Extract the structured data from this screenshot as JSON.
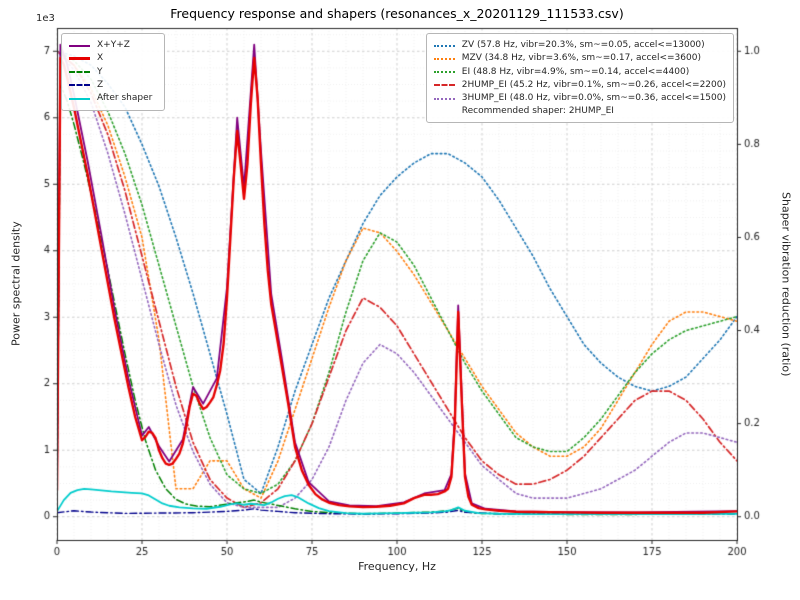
{
  "chart_data": {
    "type": "line",
    "title": "Frequency response and shapers (resonances_x_20201129_111533.csv)",
    "offset_text": "1e3",
    "xlabel": "Frequency, Hz",
    "ylabel_left": "Power spectral density",
    "ylabel_right": "Shaper vibration reduction (ratio)",
    "xlim": [
      0,
      200
    ],
    "ylim_left": [
      -350,
      7350
    ],
    "ylim_right": [
      -0.05,
      1.05
    ],
    "grid": "both",
    "xticks": {
      "values": [
        0,
        25,
        50,
        75,
        100,
        125,
        150,
        175,
        200
      ],
      "labels": [
        "0",
        "25",
        "50",
        "75",
        "100",
        "125",
        "150",
        "175",
        "200"
      ]
    },
    "yticks_left": {
      "values": [
        0,
        1000,
        2000,
        3000,
        4000,
        5000,
        6000,
        7000
      ],
      "labels": [
        "0",
        "1",
        "2",
        "3",
        "4",
        "5",
        "6",
        "7"
      ]
    },
    "yticks_right": {
      "values": [
        0,
        0.2,
        0.4,
        0.6,
        0.8,
        1.0
      ],
      "labels": [
        "0.0",
        "0.2",
        "0.4",
        "0.6",
        "0.8",
        "1.0"
      ]
    },
    "x_minor_step": 5,
    "y_minor_step_left": 250,
    "shaper_x": [
      0,
      5,
      10,
      15,
      20,
      25,
      30,
      35,
      40,
      45,
      50,
      55,
      60,
      65,
      70,
      75,
      80,
      85,
      90,
      95,
      100,
      105,
      110,
      115,
      120,
      125,
      130,
      135,
      140,
      145,
      150,
      155,
      160,
      165,
      170,
      175,
      180,
      185,
      190,
      195,
      200
    ],
    "series": [
      {
        "name": "ZV",
        "axis": "right",
        "color": "#1f77b4",
        "dash": "dotted",
        "width": 1.6,
        "x_ref": "shaper_x",
        "y": [
          1.0,
          0.99,
          0.97,
          0.93,
          0.88,
          0.8,
          0.71,
          0.6,
          0.48,
          0.35,
          0.22,
          0.08,
          0.05,
          0.15,
          0.27,
          0.37,
          0.47,
          0.55,
          0.63,
          0.69,
          0.73,
          0.76,
          0.78,
          0.78,
          0.76,
          0.73,
          0.68,
          0.62,
          0.56,
          0.49,
          0.43,
          0.37,
          0.33,
          0.3,
          0.28,
          0.27,
          0.28,
          0.3,
          0.34,
          0.38,
          0.43
        ]
      },
      {
        "name": "MZV",
        "axis": "right",
        "color": "#ff7f0e",
        "dash": "dotted",
        "width": 1.6,
        "x_ref": "shaper_x",
        "y": [
          1.0,
          0.97,
          0.92,
          0.84,
          0.73,
          0.6,
          0.38,
          0.06,
          0.06,
          0.12,
          0.12,
          0.06,
          0.04,
          0.12,
          0.23,
          0.34,
          0.45,
          0.55,
          0.62,
          0.61,
          0.57,
          0.52,
          0.46,
          0.4,
          0.34,
          0.28,
          0.23,
          0.18,
          0.15,
          0.13,
          0.13,
          0.15,
          0.19,
          0.25,
          0.31,
          0.37,
          0.42,
          0.44,
          0.44,
          0.43,
          0.42
        ]
      },
      {
        "name": "EI",
        "axis": "right",
        "color": "#2ca02c",
        "dash": "dotted",
        "width": 1.6,
        "x_ref": "shaper_x",
        "y": [
          1.0,
          0.98,
          0.94,
          0.87,
          0.78,
          0.67,
          0.54,
          0.41,
          0.28,
          0.17,
          0.09,
          0.06,
          0.05,
          0.07,
          0.12,
          0.2,
          0.31,
          0.44,
          0.55,
          0.61,
          0.59,
          0.54,
          0.47,
          0.4,
          0.33,
          0.27,
          0.22,
          0.17,
          0.15,
          0.14,
          0.14,
          0.17,
          0.21,
          0.26,
          0.31,
          0.35,
          0.38,
          0.4,
          0.41,
          0.42,
          0.43
        ]
      },
      {
        "name": "2HUMP_EI",
        "axis": "right",
        "color": "#d62728",
        "dash": "dashdot",
        "width": 1.7,
        "x_ref": "shaper_x",
        "y": [
          1.0,
          0.97,
          0.91,
          0.82,
          0.7,
          0.56,
          0.42,
          0.28,
          0.16,
          0.08,
          0.04,
          0.02,
          0.03,
          0.06,
          0.12,
          0.2,
          0.3,
          0.4,
          0.47,
          0.45,
          0.41,
          0.35,
          0.29,
          0.23,
          0.17,
          0.12,
          0.09,
          0.07,
          0.07,
          0.08,
          0.1,
          0.13,
          0.17,
          0.21,
          0.25,
          0.27,
          0.27,
          0.25,
          0.21,
          0.16,
          0.12
        ]
      },
      {
        "name": "3HUMP_EI",
        "axis": "right",
        "color": "#9467bd",
        "dash": "dotted",
        "width": 1.6,
        "x_ref": "shaper_x",
        "y": [
          1.0,
          0.96,
          0.89,
          0.78,
          0.65,
          0.51,
          0.37,
          0.24,
          0.14,
          0.07,
          0.03,
          0.02,
          0.02,
          0.02,
          0.04,
          0.08,
          0.15,
          0.25,
          0.33,
          0.37,
          0.35,
          0.31,
          0.26,
          0.21,
          0.16,
          0.11,
          0.08,
          0.05,
          0.04,
          0.04,
          0.04,
          0.05,
          0.06,
          0.08,
          0.1,
          0.13,
          0.16,
          0.18,
          0.18,
          0.17,
          0.16
        ]
      },
      {
        "name": "Y",
        "axis": "left",
        "color": "#008000",
        "dash": "dashdot",
        "width": 1.5,
        "x": [
          0,
          1,
          3,
          5,
          8,
          11,
          14,
          17,
          20,
          23,
          26,
          29,
          32,
          35,
          38,
          41,
          45,
          50,
          53,
          56,
          58,
          60,
          63,
          66,
          70,
          75,
          80,
          90,
          100,
          110,
          115,
          118,
          120,
          125,
          135,
          150,
          170,
          200
        ],
        "y": [
          300,
          6500,
          6250,
          5900,
          5300,
          4650,
          3950,
          3200,
          2450,
          1750,
          1150,
          700,
          420,
          260,
          190,
          160,
          150,
          190,
          210,
          230,
          250,
          220,
          190,
          160,
          120,
          80,
          60,
          45,
          55,
          70,
          90,
          130,
          70,
          50,
          40,
          35,
          35,
          45
        ]
      },
      {
        "name": "Z",
        "axis": "left",
        "color": "#00008b",
        "dash": "dashdot",
        "width": 1.4,
        "x": [
          0,
          5,
          10,
          20,
          30,
          40,
          50,
          55,
          58,
          60,
          65,
          70,
          80,
          90,
          100,
          110,
          115,
          118,
          120,
          130,
          150,
          170,
          200
        ],
        "y": [
          60,
          90,
          70,
          50,
          55,
          60,
          80,
          100,
          120,
          100,
          80,
          60,
          45,
          40,
          45,
          55,
          70,
          95,
          65,
          45,
          40,
          40,
          45
        ]
      },
      {
        "name": "After shaper",
        "axis": "left",
        "color": "#00cccc",
        "dash": "solid",
        "width": 1.8,
        "x": [
          0,
          2,
          4,
          6,
          8,
          10,
          13,
          16,
          19,
          22,
          25,
          27,
          29,
          31,
          33,
          36,
          40,
          44,
          48,
          51,
          53,
          55,
          57,
          59,
          61,
          63,
          65,
          67,
          69,
          71,
          74,
          77,
          80,
          85,
          90,
          95,
          100,
          105,
          110,
          114,
          116,
          118,
          120,
          124,
          130,
          140,
          155,
          170,
          185,
          200
        ],
        "y": [
          80,
          250,
          360,
          400,
          420,
          410,
          395,
          380,
          370,
          360,
          350,
          320,
          260,
          200,
          165,
          140,
          125,
          120,
          150,
          185,
          200,
          180,
          195,
          185,
          175,
          215,
          270,
          310,
          325,
          290,
          200,
          130,
          85,
          55,
          45,
          50,
          55,
          60,
          65,
          80,
          100,
          140,
          90,
          55,
          45,
          40,
          40,
          40,
          40,
          45
        ]
      },
      {
        "name": "X+Y+Z",
        "axis": "left",
        "color": "#800080",
        "dash": "solid",
        "width": 1.8,
        "x": [
          0,
          1,
          3,
          5,
          9,
          13,
          17,
          21,
          25,
          27,
          30,
          33,
          37,
          40,
          43,
          47,
          50,
          53,
          55,
          58,
          60,
          63,
          66,
          70,
          74,
          80,
          86,
          94,
          102,
          108,
          114,
          116,
          117,
          118,
          119,
          120,
          122,
          126,
          135,
          150,
          170,
          200
        ],
        "y": [
          500,
          7100,
          6800,
          6350,
          5350,
          4250,
          3100,
          2080,
          1220,
          1350,
          1060,
          830,
          1160,
          1950,
          1700,
          2080,
          3450,
          6000,
          4950,
          7100,
          5500,
          3350,
          2420,
          1120,
          520,
          230,
          170,
          160,
          215,
          350,
          400,
          640,
          1500,
          3180,
          1900,
          650,
          200,
          120,
          80,
          70,
          65,
          85
        ]
      },
      {
        "name": "X",
        "axis": "left",
        "color": "#e60000",
        "dash": "solid",
        "width": 2.4,
        "x": [
          0,
          1,
          2,
          3,
          5,
          7,
          9,
          11,
          13,
          15,
          17,
          19,
          21,
          23,
          25,
          26,
          27,
          28,
          29,
          30,
          31,
          32,
          33,
          34,
          35,
          36,
          37,
          38,
          39,
          40,
          41,
          42,
          43,
          44,
          45,
          46,
          47,
          48,
          49,
          50,
          51,
          52,
          53,
          54,
          55,
          56,
          57,
          58,
          59,
          60,
          61,
          62,
          63,
          64,
          65,
          66,
          67,
          68,
          70,
          72,
          74,
          76,
          78,
          80,
          83,
          86,
          90,
          94,
          98,
          102,
          105,
          108,
          110,
          112,
          114,
          115,
          116,
          117,
          118,
          119,
          120,
          121,
          122,
          124,
          126,
          130,
          135,
          140,
          150,
          160,
          170,
          180,
          190,
          200
        ],
        "y": [
          400,
          6900,
          6800,
          6600,
          6150,
          5650,
          5150,
          4600,
          4050,
          3500,
          2950,
          2450,
          1950,
          1500,
          1150,
          1200,
          1280,
          1260,
          1180,
          1000,
          880,
          800,
          780,
          800,
          870,
          950,
          1100,
          1350,
          1650,
          1850,
          1820,
          1700,
          1620,
          1650,
          1720,
          1800,
          1980,
          2200,
          2600,
          3300,
          4200,
          5100,
          5800,
          5300,
          4780,
          5300,
          6200,
          6900,
          6300,
          5300,
          4400,
          3700,
          3200,
          2900,
          2600,
          2300,
          2000,
          1700,
          1050,
          700,
          480,
          340,
          260,
          210,
          175,
          155,
          145,
          150,
          165,
          200,
          280,
          330,
          330,
          340,
          380,
          420,
          600,
          1400,
          3080,
          1800,
          600,
          300,
          180,
          130,
          110,
          90,
          75,
          70,
          65,
          60,
          60,
          60,
          60,
          80
        ]
      }
    ]
  },
  "legend_psd": {
    "items": [
      {
        "label": "X+Y+Z",
        "color": "#800080",
        "dash": "solid",
        "sw": 2
      },
      {
        "label": "X",
        "color": "#e60000",
        "dash": "solid",
        "sw": 3
      },
      {
        "label": "Y",
        "color": "#008000",
        "dash": "dashdot",
        "sw": 2
      },
      {
        "label": "Z",
        "color": "#00008b",
        "dash": "dashdot",
        "sw": 2
      },
      {
        "label": "After shaper",
        "color": "#00cccc",
        "dash": "solid",
        "sw": 2
      }
    ]
  },
  "legend_shapers": {
    "items": [
      {
        "label": "ZV (57.8 Hz, vibr=20.3%, sm~=0.05, accel<=13000)",
        "color": "#1f77b4",
        "dash": "dotted",
        "sw": 2
      },
      {
        "label": "MZV (34.8 Hz, vibr=3.6%, sm~=0.17, accel<=3600)",
        "color": "#ff7f0e",
        "dash": "dotted",
        "sw": 2
      },
      {
        "label": "EI (48.8 Hz, vibr=4.9%, sm~=0.14, accel<=4400)",
        "color": "#2ca02c",
        "dash": "dotted",
        "sw": 2
      },
      {
        "label": "2HUMP_EI (45.2 Hz, vibr=0.1%, sm~=0.26, accel<=2200)",
        "color": "#d62728",
        "dash": "dashdot",
        "sw": 2
      },
      {
        "label": "3HUMP_EI (48.0 Hz, vibr=0.0%, sm~=0.36, accel<=1500)",
        "color": "#9467bd",
        "dash": "dotted",
        "sw": 2
      }
    ],
    "note": "Recommended shaper: 2HUMP_EI"
  }
}
